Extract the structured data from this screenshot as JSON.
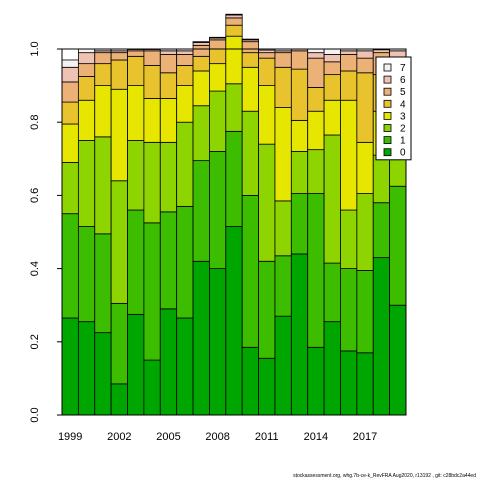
{
  "chart_data": {
    "type": "bar",
    "stacked": true,
    "categories": [
      1999,
      2000,
      2001,
      2002,
      2003,
      2004,
      2005,
      2006,
      2007,
      2008,
      2009,
      2010,
      2011,
      2012,
      2013,
      2014,
      2015,
      2016,
      2017,
      2018,
      2019
    ],
    "x_tick_labels": [
      "1999",
      "2002",
      "2005",
      "2008",
      "2011",
      "2014",
      "2017"
    ],
    "ylim": [
      0,
      1
    ],
    "y_tick_labels": [
      "0.0",
      "0.2",
      "0.4",
      "0.6",
      "0.8",
      "1.0"
    ],
    "legend_position": "top-right",
    "colors": [
      "#00a600",
      "#3dbd00",
      "#8ed400",
      "#e6e600",
      "#e8c32e",
      "#ecb176",
      "#efc2b3",
      "#f2f2f2"
    ],
    "series": [
      {
        "name": "0",
        "values": [
          0.265,
          0.255,
          0.225,
          0.085,
          0.275,
          0.15,
          0.29,
          0.265,
          0.42,
          0.4,
          0.515,
          0.185,
          0.155,
          0.27,
          0.44,
          0.185,
          0.255,
          0.175,
          0.17,
          0.43,
          0.3
        ]
      },
      {
        "name": "1",
        "values": [
          0.285,
          0.26,
          0.27,
          0.22,
          0.285,
          0.375,
          0.265,
          0.305,
          0.275,
          0.32,
          0.26,
          0.415,
          0.265,
          0.165,
          0.165,
          0.42,
          0.16,
          0.225,
          0.225,
          0.15,
          0.325
        ]
      },
      {
        "name": "2",
        "values": [
          0.14,
          0.235,
          0.265,
          0.335,
          0.19,
          0.22,
          0.19,
          0.23,
          0.15,
          0.165,
          0.13,
          0.23,
          0.32,
          0.15,
          0.115,
          0.12,
          0.35,
          0.16,
          0.21,
          0.13,
          0.085
        ]
      },
      {
        "name": "3",
        "values": [
          0.105,
          0.11,
          0.14,
          0.25,
          0.15,
          0.12,
          0.12,
          0.1,
          0.095,
          0.075,
          0.13,
          0.12,
          0.16,
          0.255,
          0.085,
          0.105,
          0.095,
          0.3,
          0.14,
          0.12,
          0.08
        ]
      },
      {
        "name": "4",
        "values": [
          0.06,
          0.065,
          0.06,
          0.08,
          0.08,
          0.09,
          0.07,
          0.055,
          0.04,
          0.04,
          0.03,
          0.04,
          0.075,
          0.11,
          0.14,
          0.065,
          0.07,
          0.08,
          0.19,
          0.1,
          0.11
        ]
      },
      {
        "name": "5",
        "values": [
          0.055,
          0.035,
          0.03,
          0.02,
          0.015,
          0.04,
          0.05,
          0.03,
          0.03,
          0.025,
          0.02,
          0.03,
          0.015,
          0.04,
          0.05,
          0.08,
          0.035,
          0.045,
          0.04,
          0.06,
          0.07
        ]
      },
      {
        "name": "6",
        "values": [
          0.04,
          0.03,
          0.005,
          0.005,
          0.004,
          0.004,
          0.01,
          0.01,
          0.008,
          0.005,
          0.008,
          0.005,
          0.007,
          0.005,
          0.005,
          0.015,
          0.02,
          0.01,
          0.02,
          0.008,
          0.025
        ]
      },
      {
        "name": "7",
        "values": [
          0.02,
          0.01,
          0.005,
          0.005,
          0.001,
          0.001,
          0.005,
          0.005,
          0.002,
          0.002,
          0.002,
          0.002,
          0.003,
          0.005,
          0.0,
          0.01,
          0.015,
          0.005,
          0.005,
          0.002,
          0.005
        ]
      }
    ]
  },
  "footer": {
    "text": "stockassessment.org, whg.7b-ce-k_RevFRA Aug2020, r13192 , git: c28bdc2a44ed"
  }
}
